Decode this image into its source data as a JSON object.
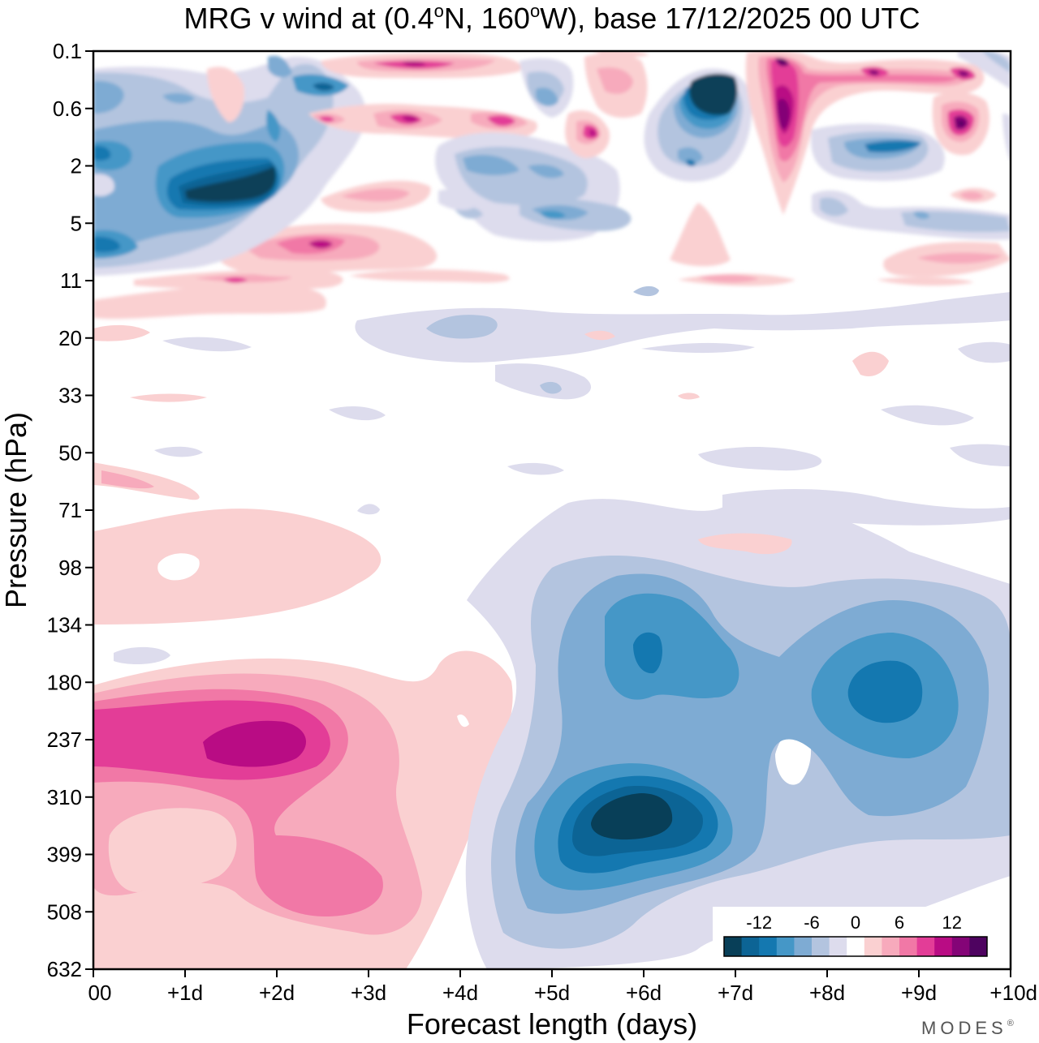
{
  "chart_data": {
    "type": "heatmap",
    "title_parts": {
      "prefix": "MRG v wind at (0.4",
      "deg1": "o",
      "mid": "N, 160",
      "deg2": "o",
      "suffix": "W),  base 17/12/2025  00 UTC"
    },
    "xlabel": "Forecast length (days)",
    "ylabel": "Pressure (hPa)",
    "x_ticks": [
      "00",
      "+1d",
      "+2d",
      "+3d",
      "+4d",
      "+5d",
      "+6d",
      "+7d",
      "+8d",
      "+9d",
      "+10d"
    ],
    "xlim": [
      0,
      10
    ],
    "y_ticks": [
      "0.1",
      "0.6",
      "2",
      "5",
      "11",
      "20",
      "33",
      "50",
      "71",
      "98",
      "134",
      "180",
      "237",
      "310",
      "399",
      "508",
      "632"
    ],
    "colorbar": {
      "levels": [
        -14,
        -12,
        -10,
        -8,
        -6,
        -4,
        -2,
        2,
        4,
        6,
        8,
        10,
        12,
        14
      ],
      "tick_labels": [
        "-12",
        "-6",
        "0",
        "6",
        "12"
      ],
      "colors": [
        "#083f58",
        "#0c6495",
        "#1478b0",
        "#4597c7",
        "#7eabd3",
        "#b3c4df",
        "#dddced",
        "#ffffff",
        "#fad0d1",
        "#f7aabc",
        "#f178a6",
        "#e33d97",
        "#b90c84",
        "#840477",
        "#4e0360"
      ]
    },
    "features": [
      {
        "name": "positive v max",
        "x_days": 2.0,
        "pressure_hPa": 237,
        "value": 10
      },
      {
        "name": "positive v lobe",
        "x_days": 2.5,
        "pressure_hPa": 399,
        "value": 7
      },
      {
        "name": "negative v min",
        "x_days": 6.0,
        "pressure_hPa": 330,
        "value": -14
      },
      {
        "name": "negative v centre",
        "x_days": 6.0,
        "pressure_hPa": 165,
        "value": -9
      },
      {
        "name": "negative v centre",
        "x_days": 8.6,
        "pressure_hPa": 190,
        "value": -10
      },
      {
        "name": "stratospheric min",
        "x_days": 1.8,
        "pressure_hPa": 3,
        "value": -14
      },
      {
        "name": "stratospheric min",
        "x_days": 7.0,
        "pressure_hPa": 0.4,
        "value": -14
      },
      {
        "name": "stratospheric max",
        "x_days": 7.5,
        "pressure_hPa": 0.6,
        "value": 14
      },
      {
        "name": "stratospheric max",
        "x_days": 9.5,
        "pressure_hPa": 0.8,
        "value": 14
      }
    ]
  },
  "branding": {
    "watermark": "MODES",
    "registered": "®"
  }
}
